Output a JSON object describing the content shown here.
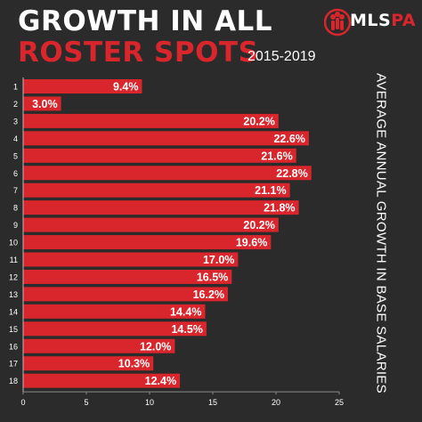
{
  "header": {
    "title_line1": "GROWTH IN ALL",
    "title_line2": "ROSTER SPOTS",
    "subtitle": "2015-2019",
    "logo_prefix": "MLS",
    "logo_suffix": "PA"
  },
  "colors": {
    "background": "#2b2b2b",
    "bar": "#d8262c",
    "accent_red": "#d8262c",
    "text": "#ffffff"
  },
  "chart_data": {
    "type": "bar",
    "orientation": "horizontal",
    "categories": [
      "1",
      "2",
      "3",
      "4",
      "5",
      "6",
      "7",
      "8",
      "9",
      "10",
      "11",
      "12",
      "13",
      "14",
      "15",
      "16",
      "17",
      "18"
    ],
    "values": [
      9.4,
      3.0,
      20.2,
      22.6,
      21.6,
      22.8,
      21.1,
      21.8,
      20.2,
      19.6,
      17.0,
      16.5,
      16.2,
      14.4,
      14.5,
      12.0,
      10.3,
      12.4
    ],
    "data_labels": [
      "9.4%",
      "3.0%",
      "20.2%",
      "22.6%",
      "21.6%",
      "22.8%",
      "21.1%",
      "21.8%",
      "20.2%",
      "19.6%",
      "17.0%",
      "16.5%",
      "16.2%",
      "14.4%",
      "14.5%",
      "12.0%",
      "10.3%",
      "12.4%"
    ],
    "title": "GROWTH IN ALL ROSTER SPOTS",
    "subtitle": "2015-2019",
    "xlabel": "",
    "ylabel": "AVERAGE ANNUAL GROWTH IN BASE SALARIES",
    "xlim": [
      0,
      25
    ],
    "xticks": [
      "0",
      "5",
      "10",
      "15",
      "20",
      "25"
    ],
    "grid": false,
    "legend": "none"
  }
}
